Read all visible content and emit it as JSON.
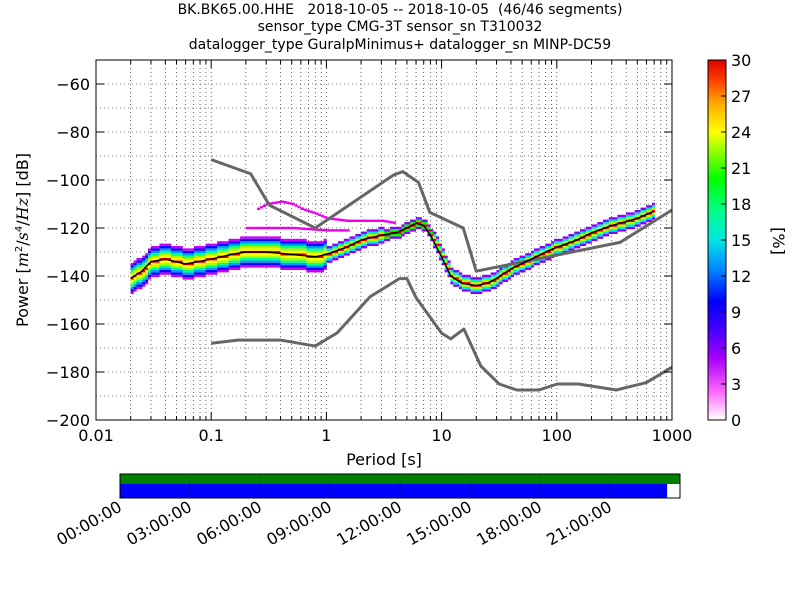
{
  "title_lines": [
    "BK.BK65.00.HHE   2018-10-05 -- 2018-10-05  (46/46 segments)",
    "sensor_type CMG-3T sensor_sn T310032",
    "datalogger_type GuralpMinimus+ datalogger_sn MINP-DC59"
  ],
  "chart_data": {
    "type": "heatmap",
    "xlabel": "Period [s]",
    "ylabel": "Power [m²/s⁴/Hz] [dB]",
    "xscale": "log",
    "xlim": [
      0.01,
      1000
    ],
    "ylim": [
      -200,
      -50
    ],
    "xticks": [
      {
        "value": 0.01,
        "label": "0.01"
      },
      {
        "value": 0.1,
        "label": "0.1"
      },
      {
        "value": 1,
        "label": "1"
      },
      {
        "value": 10,
        "label": "10"
      },
      {
        "value": 100,
        "label": "100"
      },
      {
        "value": 1000,
        "label": "1000"
      }
    ],
    "yticks": [
      {
        "value": -200,
        "label": "−200"
      },
      {
        "value": -180,
        "label": "−180"
      },
      {
        "value": -160,
        "label": "−160"
      },
      {
        "value": -140,
        "label": "−140"
      },
      {
        "value": -120,
        "label": "−120"
      },
      {
        "value": -100,
        "label": "−100"
      },
      {
        "value": -80,
        "label": "−80"
      },
      {
        "value": -60,
        "label": "−60"
      }
    ],
    "grid": "dotted",
    "colorbar": {
      "label": "[%]",
      "min": 0,
      "max": 30,
      "ticks": [
        "0",
        "3",
        "6",
        "9",
        "12",
        "15",
        "18",
        "21",
        "24",
        "27",
        "30"
      ]
    },
    "nlnm": [
      [
        0.1,
        -168
      ],
      [
        0.17,
        -166.7
      ],
      [
        0.4,
        -166.7
      ],
      [
        0.8,
        -169.2
      ],
      [
        1.24,
        -163.7
      ],
      [
        2.4,
        -148.6
      ],
      [
        4.3,
        -141.1
      ],
      [
        5.0,
        -141.1
      ],
      [
        6.0,
        -149
      ],
      [
        10,
        -163.8
      ],
      [
        12,
        -166.2
      ],
      [
        15.6,
        -162.1
      ],
      [
        21.9,
        -177.5
      ],
      [
        31.6,
        -185
      ],
      [
        45,
        -187.5
      ],
      [
        70,
        -187.5
      ],
      [
        101,
        -185
      ],
      [
        154,
        -185
      ],
      [
        328,
        -187.5
      ],
      [
        600,
        -184.4
      ],
      [
        1000,
        -178
      ]
    ],
    "nhnm": [
      [
        0.1,
        -91.5
      ],
      [
        0.22,
        -97.4
      ],
      [
        0.32,
        -110.5
      ],
      [
        0.8,
        -120
      ],
      [
        3.8,
        -98
      ],
      [
        4.6,
        -96.5
      ],
      [
        6.3,
        -101
      ],
      [
        7.9,
        -113.5
      ],
      [
        15.4,
        -120
      ],
      [
        20,
        -138
      ],
      [
        354,
        -126
      ],
      [
        1000,
        -112.5
      ]
    ],
    "mode": [
      [
        0.02,
        -141
      ],
      [
        0.025,
        -138
      ],
      [
        0.03,
        -134
      ],
      [
        0.04,
        -133
      ],
      [
        0.06,
        -135
      ],
      [
        0.1,
        -133
      ],
      [
        0.15,
        -131
      ],
      [
        0.2,
        -130
      ],
      [
        0.3,
        -130
      ],
      [
        0.5,
        -131
      ],
      [
        0.8,
        -132
      ],
      [
        1,
        -131
      ],
      [
        1.5,
        -128
      ],
      [
        2,
        -125
      ],
      [
        3,
        -123
      ],
      [
        4,
        -122
      ],
      [
        5,
        -120
      ],
      [
        6,
        -118
      ],
      [
        7,
        -119
      ],
      [
        8,
        -123
      ],
      [
        10,
        -132
      ],
      [
        12,
        -140
      ],
      [
        15,
        -143
      ],
      [
        20,
        -144
      ],
      [
        25,
        -143
      ],
      [
        30,
        -141
      ],
      [
        40,
        -137
      ],
      [
        60,
        -133
      ],
      [
        80,
        -130
      ],
      [
        100,
        -128
      ],
      [
        150,
        -125
      ],
      [
        200,
        -122
      ],
      [
        300,
        -119
      ],
      [
        500,
        -116
      ],
      [
        700,
        -113
      ]
    ],
    "outlier_magenta": [
      [
        0.25,
        -112
      ],
      [
        0.3,
        -110
      ],
      [
        0.4,
        -109
      ],
      [
        0.5,
        -110
      ],
      [
        0.6,
        -112
      ],
      [
        0.8,
        -114
      ],
      [
        1,
        -116
      ],
      [
        1.5,
        -117
      ],
      [
        2,
        -117
      ],
      [
        3,
        -117
      ],
      [
        4,
        -118
      ]
    ],
    "outlier_magenta2": [
      [
        0.2,
        -120
      ],
      [
        0.3,
        -120
      ],
      [
        0.5,
        -120
      ],
      [
        1,
        -121
      ],
      [
        1.5,
        -121
      ]
    ]
  },
  "timeline": {
    "ticks": [
      "00:00:00",
      "03:00:00",
      "06:00:00",
      "09:00:00",
      "12:00:00",
      "15:00:00",
      "18:00:00",
      "21:00:00"
    ],
    "coverage_fraction": 0.977,
    "top_color": "#008000",
    "bottom_color": "#0000ff"
  }
}
